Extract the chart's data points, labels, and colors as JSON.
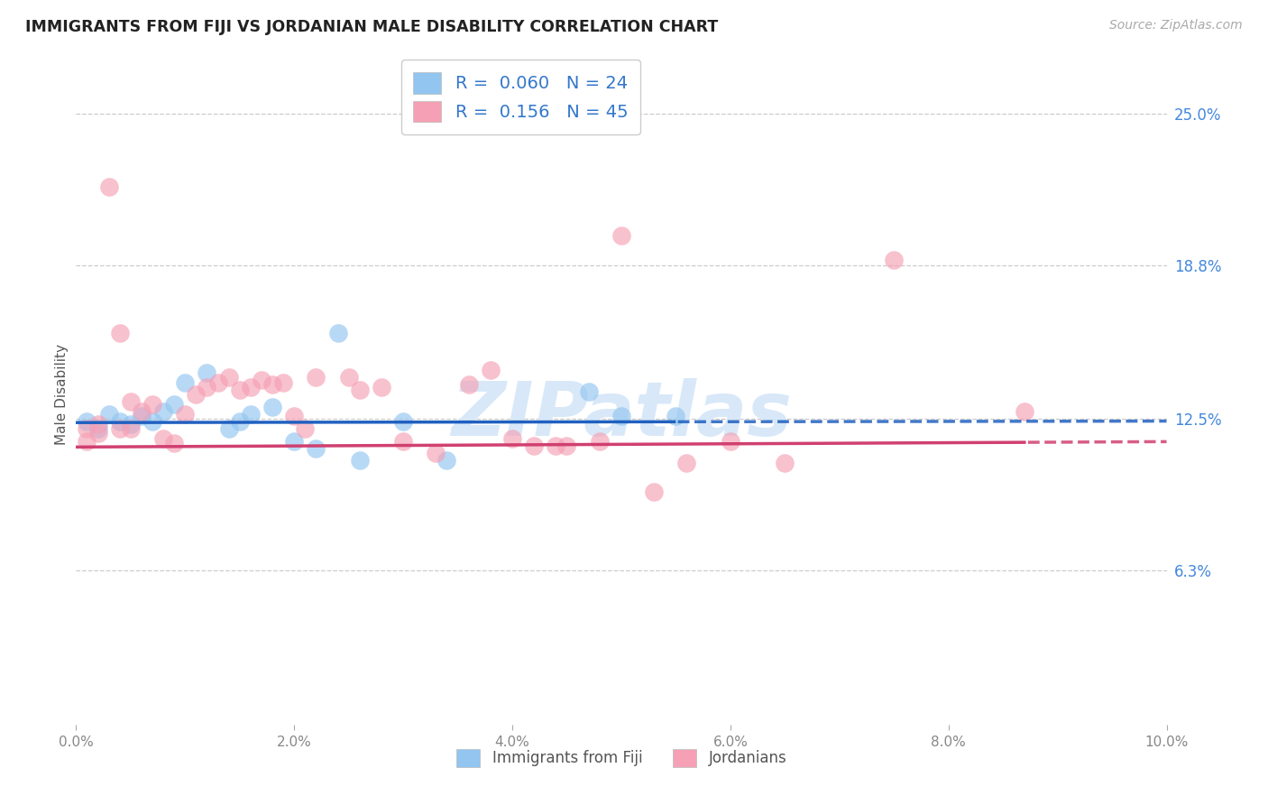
{
  "title": "IMMIGRANTS FROM FIJI VS JORDANIAN MALE DISABILITY CORRELATION CHART",
  "source": "Source: ZipAtlas.com",
  "ylabel": "Male Disability",
  "xlim": [
    0.0,
    0.1
  ],
  "ylim": [
    0.0,
    0.27
  ],
  "ytick_vals": [
    0.063,
    0.125,
    0.188,
    0.25
  ],
  "ytick_labels": [
    "6.3%",
    "12.5%",
    "18.8%",
    "25.0%"
  ],
  "xtick_vals": [
    0.0,
    0.02,
    0.04,
    0.06,
    0.08,
    0.1
  ],
  "xtick_labels": [
    "0.0%",
    "2.0%",
    "4.0%",
    "6.0%",
    "8.0%",
    "10.0%"
  ],
  "fiji_label": "Immigrants from Fiji",
  "jordan_label": "Jordanians",
  "fiji_R": "0.060",
  "fiji_N": "24",
  "jordan_R": "0.156",
  "jordan_N": "45",
  "fiji_color": "#92c5f0",
  "jordan_color": "#f5a0b5",
  "fiji_line_color": "#2060c0",
  "jordan_line_color": "#d04070",
  "watermark": "ZIPatlas",
  "fiji_x": [
    0.001,
    0.002,
    0.003,
    0.004,
    0.005,
    0.006,
    0.007,
    0.008,
    0.009,
    0.01,
    0.012,
    0.014,
    0.015,
    0.016,
    0.018,
    0.02,
    0.022,
    0.024,
    0.026,
    0.03,
    0.034,
    0.047,
    0.05,
    0.055
  ],
  "fiji_y": [
    0.124,
    0.121,
    0.127,
    0.124,
    0.123,
    0.126,
    0.124,
    0.128,
    0.131,
    0.14,
    0.144,
    0.121,
    0.124,
    0.127,
    0.13,
    0.116,
    0.113,
    0.16,
    0.108,
    0.124,
    0.108,
    0.136,
    0.126,
    0.126
  ],
  "jordan_x": [
    0.001,
    0.001,
    0.002,
    0.002,
    0.003,
    0.004,
    0.005,
    0.005,
    0.006,
    0.007,
    0.008,
    0.009,
    0.01,
    0.011,
    0.012,
    0.013,
    0.014,
    0.015,
    0.016,
    0.017,
    0.018,
    0.019,
    0.02,
    0.021,
    0.022,
    0.025,
    0.026,
    0.028,
    0.03,
    0.033,
    0.036,
    0.038,
    0.04,
    0.042,
    0.044,
    0.045,
    0.048,
    0.05,
    0.053,
    0.056,
    0.06,
    0.065,
    0.075,
    0.087,
    0.004
  ],
  "jordan_y": [
    0.121,
    0.116,
    0.119,
    0.123,
    0.22,
    0.121,
    0.121,
    0.132,
    0.128,
    0.131,
    0.117,
    0.115,
    0.127,
    0.135,
    0.138,
    0.14,
    0.142,
    0.137,
    0.138,
    0.141,
    0.139,
    0.14,
    0.126,
    0.121,
    0.142,
    0.142,
    0.137,
    0.138,
    0.116,
    0.111,
    0.139,
    0.145,
    0.117,
    0.114,
    0.114,
    0.114,
    0.116,
    0.2,
    0.095,
    0.107,
    0.116,
    0.107,
    0.19,
    0.128,
    0.16
  ]
}
